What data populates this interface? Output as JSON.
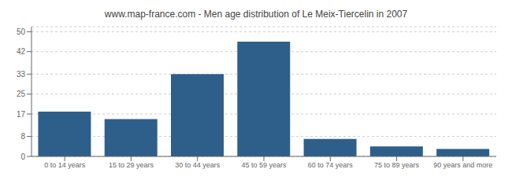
{
  "chart_data": {
    "type": "bar",
    "title": "www.map-france.com - Men age distribution of Le Meix-Tiercelin in 2007",
    "categories": [
      "0 to 14 years",
      "15 to 29 years",
      "30 to 44 years",
      "45 to 59 years",
      "60 to 74 years",
      "75 to 89 years",
      "90 years and more"
    ],
    "values": [
      18,
      15,
      33,
      46,
      7,
      4,
      3
    ],
    "color": "#2e5f8a",
    "ylim": [
      0,
      52
    ],
    "yticks": [
      0,
      8,
      17,
      25,
      33,
      42,
      50
    ],
    "grid": true
  }
}
